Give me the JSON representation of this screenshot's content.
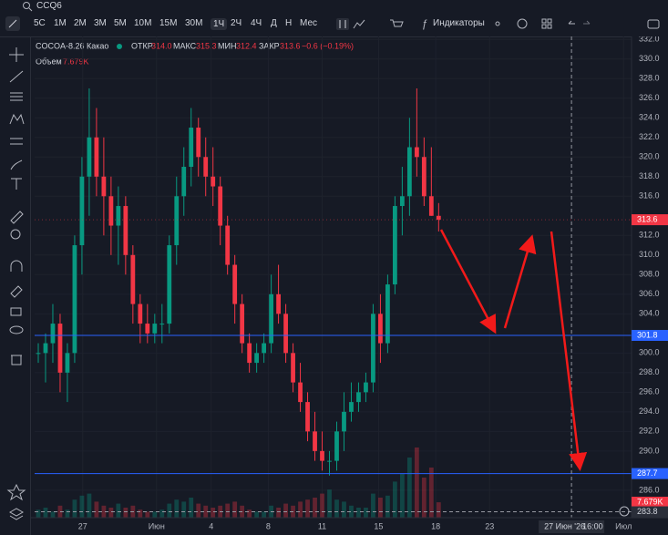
{
  "search": "CCQ6",
  "toolbar": {
    "intervals": [
      "5С",
      "1М",
      "2М",
      "3М",
      "5М",
      "10М",
      "15М",
      "30М",
      "1Ч",
      "2Ч",
      "4Ч",
      "Д",
      "Н",
      "Мес"
    ],
    "active": "1Ч",
    "indicators": "Индикаторы"
  },
  "legend": {
    "symbol": "COCOA-8.26 Какао",
    "open_label": "ОТКР",
    "open": "314.0",
    "high_label": "МАКС",
    "high": "315.3",
    "low_label": "МИН",
    "low": "312.4",
    "close_label": "ЗАКР",
    "close": "313.6",
    "change": "−0.6 (−0.19%)",
    "volume_label": "Объем",
    "volume": "7.679K"
  },
  "chart_data": {
    "type": "candlestick",
    "up_color": "#089981",
    "down_color": "#f23645",
    "ohlc": [
      [
        300,
        301,
        299,
        300
      ],
      [
        300,
        302,
        297,
        301
      ],
      [
        301,
        305,
        299,
        303
      ],
      [
        303,
        304,
        296,
        298
      ],
      [
        298,
        301,
        295,
        300
      ],
      [
        300,
        312,
        299,
        311
      ],
      [
        311,
        320,
        308,
        318
      ],
      [
        318,
        327,
        314,
        322
      ],
      [
        322,
        325,
        316,
        318
      ],
      [
        318,
        322,
        312,
        316
      ],
      [
        316,
        318,
        310,
        313
      ],
      [
        313,
        317,
        309,
        315
      ],
      [
        315,
        316,
        308,
        310
      ],
      [
        310,
        311,
        303,
        305
      ],
      [
        305,
        306,
        301,
        303
      ],
      [
        303,
        305,
        301,
        302
      ],
      [
        302,
        304,
        301,
        303
      ],
      [
        303,
        305,
        301,
        303
      ],
      [
        303,
        312,
        302,
        311
      ],
      [
        311,
        318,
        309,
        316
      ],
      [
        316,
        321,
        314,
        319
      ],
      [
        319,
        325,
        317,
        323
      ],
      [
        323,
        324,
        318,
        320
      ],
      [
        320,
        322,
        316,
        318
      ],
      [
        318,
        321,
        315,
        317
      ],
      [
        317,
        318,
        311,
        313
      ],
      [
        313,
        314,
        308,
        309
      ],
      [
        309,
        310,
        303,
        305
      ],
      [
        305,
        306,
        300,
        301
      ],
      [
        301,
        302,
        298,
        299
      ],
      [
        299,
        301,
        298,
        300
      ],
      [
        300,
        302,
        299,
        301
      ],
      [
        301,
        308,
        300,
        306
      ],
      [
        306,
        309,
        303,
        304
      ],
      [
        304,
        305,
        299,
        300
      ],
      [
        300,
        301,
        296,
        297
      ],
      [
        297,
        299,
        294,
        295
      ],
      [
        295,
        296,
        291,
        292
      ],
      [
        292,
        294,
        289,
        290
      ],
      [
        290,
        292,
        288,
        289
      ],
      [
        289,
        290,
        287.5,
        289
      ],
      [
        289,
        293,
        288,
        292
      ],
      [
        292,
        296,
        290,
        294
      ],
      [
        294,
        297,
        293,
        295
      ],
      [
        295,
        297,
        294,
        296
      ],
      [
        296,
        298,
        295,
        297
      ],
      [
        297,
        305,
        296,
        304
      ],
      [
        304,
        306,
        299,
        301
      ],
      [
        301,
        308,
        300,
        307
      ],
      [
        307,
        316,
        306,
        315
      ],
      [
        315,
        319,
        312,
        316
      ],
      [
        316,
        324,
        314,
        321
      ],
      [
        321,
        327,
        318,
        320
      ],
      [
        320,
        322,
        315,
        316
      ],
      [
        316,
        321,
        314,
        314
      ],
      [
        314.0,
        315.3,
        312.4,
        313.6
      ]
    ],
    "volume": [
      4,
      5,
      3,
      6,
      4,
      9,
      11,
      12,
      8,
      6,
      5,
      7,
      5,
      6,
      4,
      3,
      3,
      4,
      7,
      9,
      8,
      10,
      7,
      6,
      5,
      6,
      7,
      8,
      6,
      4,
      3,
      3,
      6,
      5,
      7,
      6,
      8,
      9,
      10,
      12,
      14,
      9,
      8,
      6,
      5,
      5,
      12,
      10,
      11,
      18,
      22,
      30,
      35,
      20,
      25,
      7.679
    ],
    "volume_labels": {
      "last": "7.679K"
    },
    "ylim": [
      283.2,
      332.3
    ],
    "yticks": [
      {
        "value": 286,
        "label": "286.0"
      },
      {
        "value": 290,
        "label": "290.0"
      },
      {
        "value": 292,
        "label": "292.0"
      },
      {
        "value": 294,
        "label": "294.0"
      },
      {
        "value": 296,
        "label": "296.0"
      },
      {
        "value": 298,
        "label": "298.0"
      },
      {
        "value": 300,
        "label": "300.0"
      },
      {
        "value": 304,
        "label": "304.0"
      },
      {
        "value": 306,
        "label": "306.0"
      },
      {
        "value": 308,
        "label": "308.0"
      },
      {
        "value": 310,
        "label": "310.0"
      },
      {
        "value": 312,
        "label": "312.0"
      },
      {
        "value": 316,
        "label": "316.0"
      },
      {
        "value": 318,
        "label": "318.0"
      },
      {
        "value": 320,
        "label": "320.0"
      },
      {
        "value": 322,
        "label": "322.0"
      },
      {
        "value": 324,
        "label": "324.0"
      },
      {
        "value": 326,
        "label": "326.0"
      },
      {
        "value": 328,
        "label": "328.0"
      },
      {
        "value": 330,
        "label": "330.0"
      },
      {
        "value": 332,
        "label": "332.0"
      }
    ],
    "xlim": [
      0,
      82
    ],
    "xticks": [
      {
        "value": 6.6,
        "label": "27"
      },
      {
        "value": 16.75,
        "label": "Июн"
      },
      {
        "value": 24.25,
        "label": "4"
      },
      {
        "value": 32.1,
        "label": "8"
      },
      {
        "value": 39.5,
        "label": "11"
      },
      {
        "value": 47.25,
        "label": "15"
      },
      {
        "value": 55.1,
        "label": "18"
      },
      {
        "value": 62.5,
        "label": "23"
      },
      {
        "value": 80.9,
        "label": "Июл"
      }
    ],
    "last_price": {
      "value": 313.6,
      "label": "313.6"
    },
    "levels": [
      {
        "value": 301.8,
        "label": "301.8",
        "color": "#2962ff"
      },
      {
        "value": 287.7,
        "label": "287.7",
        "color": "#2962ff"
      }
    ],
    "crosshair": {
      "x": 73.75,
      "date": "27 Июн '26",
      "time": "16:00",
      "price": {
        "value": 283.8,
        "label": "283.8"
      }
    }
  }
}
